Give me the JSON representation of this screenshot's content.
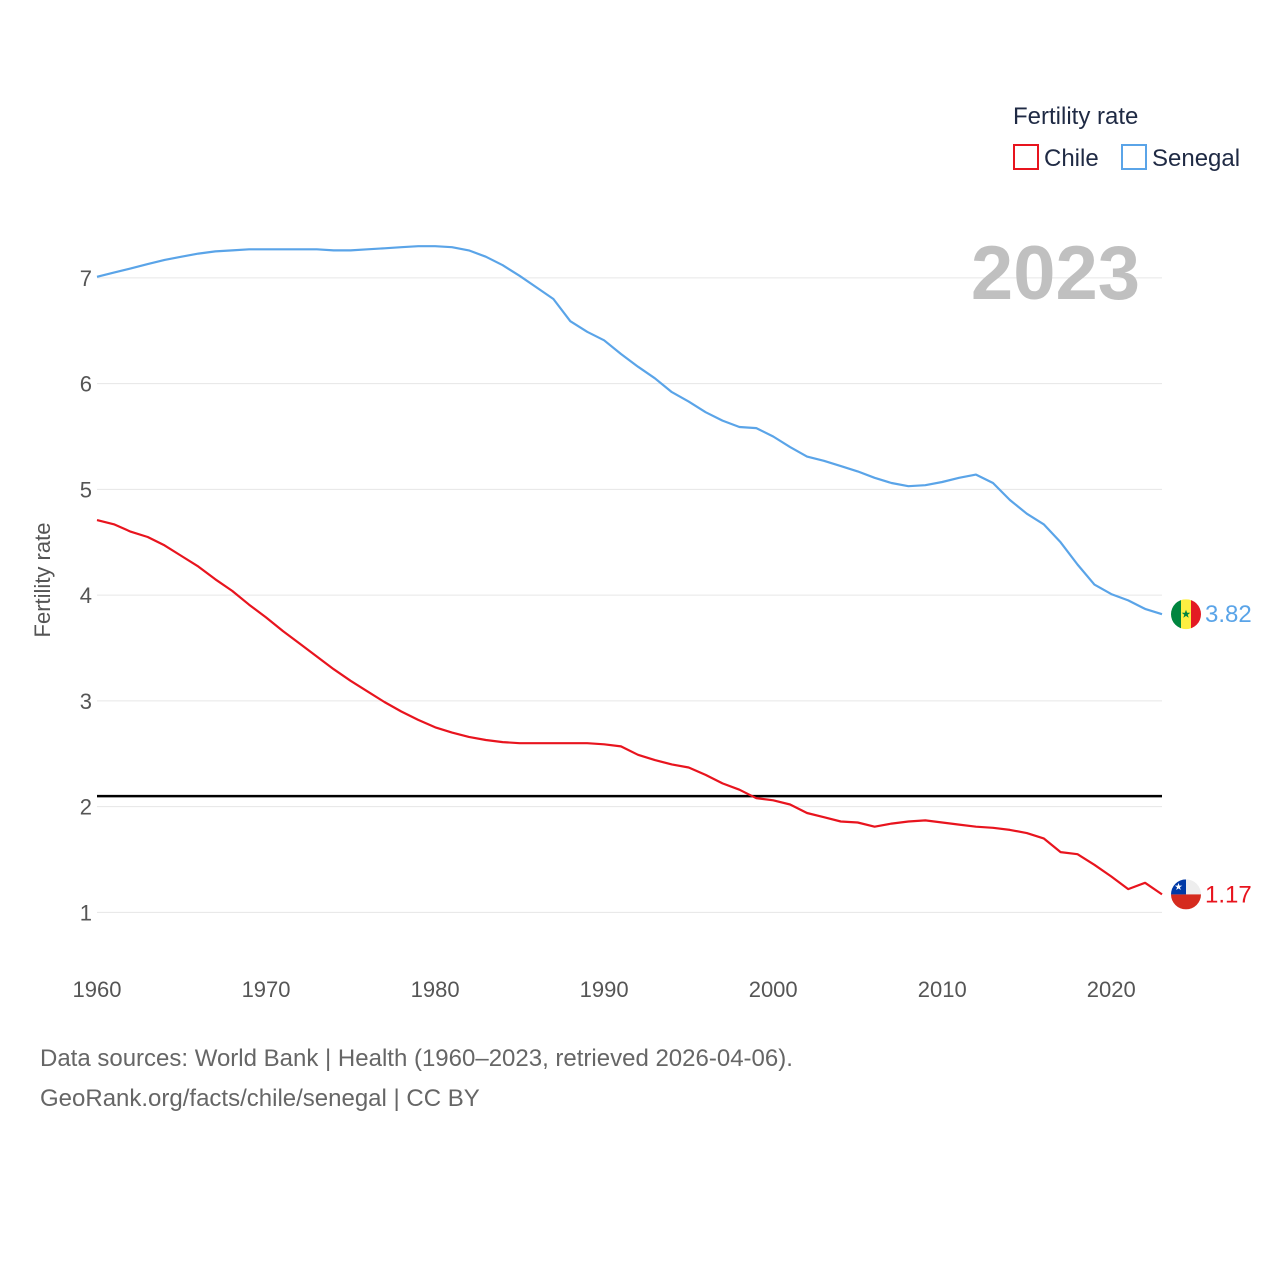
{
  "chart_data": {
    "type": "line",
    "current_year": "2023",
    "ylabel": "Fertility rate",
    "xlabel": "",
    "xlim": [
      1960,
      2023
    ],
    "ylim": [
      0.55,
      7.5
    ],
    "xticks": [
      1960,
      1970,
      1980,
      1990,
      2000,
      2010,
      2020
    ],
    "yticks": [
      1,
      2,
      3,
      4,
      5,
      6,
      7
    ],
    "reference_line": 2.1,
    "legend": {
      "title": "Fertility rate",
      "position": "top-right"
    },
    "x": [
      1960,
      1961,
      1962,
      1963,
      1964,
      1965,
      1966,
      1967,
      1968,
      1969,
      1970,
      1971,
      1972,
      1973,
      1974,
      1975,
      1976,
      1977,
      1978,
      1979,
      1980,
      1981,
      1982,
      1983,
      1984,
      1985,
      1986,
      1987,
      1988,
      1989,
      1990,
      1991,
      1992,
      1993,
      1994,
      1995,
      1996,
      1997,
      1998,
      1999,
      2000,
      2001,
      2002,
      2003,
      2004,
      2005,
      2006,
      2007,
      2008,
      2009,
      2010,
      2011,
      2012,
      2013,
      2014,
      2015,
      2016,
      2017,
      2018,
      2019,
      2020,
      2021,
      2022,
      2023
    ],
    "series": [
      {
        "name": "Senegal",
        "color": "#5aa4e8",
        "end_label": "3.82",
        "values": [
          7.01,
          7.05,
          7.09,
          7.13,
          7.17,
          7.2,
          7.23,
          7.25,
          7.26,
          7.27,
          7.27,
          7.27,
          7.27,
          7.27,
          7.26,
          7.26,
          7.27,
          7.28,
          7.29,
          7.3,
          7.3,
          7.29,
          7.26,
          7.2,
          7.12,
          7.02,
          6.91,
          6.8,
          6.59,
          6.49,
          6.41,
          6.28,
          6.16,
          6.05,
          5.92,
          5.83,
          5.73,
          5.65,
          5.59,
          5.58,
          5.5,
          5.4,
          5.31,
          5.27,
          5.22,
          5.17,
          5.11,
          5.06,
          5.03,
          5.04,
          5.07,
          5.11,
          5.14,
          5.06,
          4.9,
          4.77,
          4.67,
          4.5,
          4.29,
          4.1,
          4.01,
          3.95,
          3.87,
          3.82
        ]
      },
      {
        "name": "Chile",
        "color": "#e8141e",
        "end_label": "1.17",
        "values": [
          4.71,
          4.67,
          4.6,
          4.55,
          4.47,
          4.37,
          4.27,
          4.15,
          4.04,
          3.91,
          3.79,
          3.66,
          3.54,
          3.42,
          3.3,
          3.19,
          3.09,
          2.99,
          2.9,
          2.82,
          2.75,
          2.7,
          2.66,
          2.63,
          2.61,
          2.6,
          2.6,
          2.6,
          2.6,
          2.6,
          2.59,
          2.57,
          2.49,
          2.44,
          2.4,
          2.37,
          2.3,
          2.22,
          2.16,
          2.08,
          2.06,
          2.02,
          1.94,
          1.9,
          1.86,
          1.85,
          1.81,
          1.84,
          1.86,
          1.87,
          1.85,
          1.83,
          1.81,
          1.8,
          1.78,
          1.75,
          1.7,
          1.57,
          1.55,
          1.45,
          1.34,
          1.22,
          1.28,
          1.17
        ]
      }
    ]
  },
  "footer": {
    "source_line": "Data sources: World Bank | Health (1960–2023, retrieved 2026-04-06).",
    "attribution_line": "GeoRank.org/facts/chile/senegal | CC BY"
  }
}
